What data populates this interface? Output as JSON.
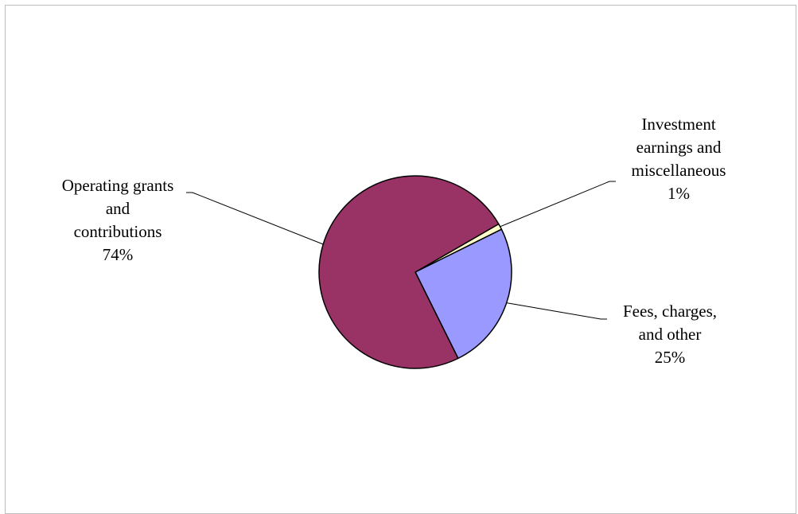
{
  "chart_data": {
    "type": "pie",
    "slices": [
      {
        "label": [
          "Operating grants",
          "and",
          "contributions"
        ],
        "percent_label": "74%",
        "value": 74,
        "color": "#993366"
      },
      {
        "label": [
          "Investment",
          "earnings and",
          "miscellaneous"
        ],
        "percent_label": "1%",
        "value": 1,
        "color": "#FFFFCC"
      },
      {
        "label": [
          "Fees, charges,",
          "and other"
        ],
        "percent_label": "25%",
        "value": 25,
        "color": "#9999FF"
      }
    ]
  }
}
